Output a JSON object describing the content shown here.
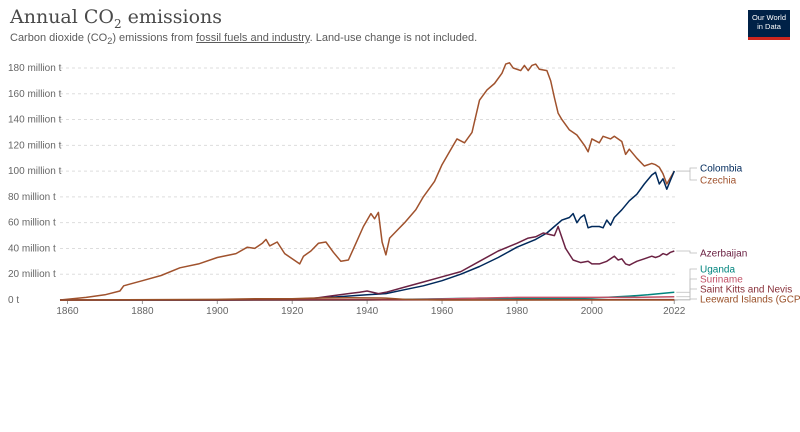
{
  "header": {
    "title_main": "Annual CO",
    "title_sub": "2",
    "title_end": " emissions",
    "subtitle_pre": "Carbon dioxide (CO",
    "subtitle_sub": "2",
    "subtitle_mid": ") emissions from ",
    "subtitle_link": "fossil fuels and industry",
    "subtitle_post": ". Land-use change is not included.",
    "logo_line1": "Our World",
    "logo_line2": "in Data"
  },
  "chart_data": {
    "type": "line",
    "xlim": [
      1858,
      2023
    ],
    "ylim": [
      0,
      180
    ],
    "x_ticks": [
      1860,
      1880,
      1900,
      1920,
      1940,
      1960,
      1980,
      2000,
      2022
    ],
    "x_tick_labels": [
      "1860",
      "1880",
      "1900",
      "1920",
      "1940",
      "1960",
      "1980",
      "2000",
      "2022"
    ],
    "y_ticks": [
      0,
      20,
      40,
      60,
      80,
      100,
      120,
      140,
      160,
      180
    ],
    "y_tick_labels": [
      "0 t",
      "20 million t",
      "40 million t",
      "60 million t",
      "80 million t",
      "100 million t",
      "120 million t",
      "140 million t",
      "160 million t",
      "180 million t"
    ],
    "grid": "horizontal dotted",
    "legend": "right, labels at line ends",
    "series": [
      {
        "name": "Czechia",
        "color": "#a0522d",
        "points": [
          [
            1858,
            0
          ],
          [
            1865,
            2
          ],
          [
            1870,
            4
          ],
          [
            1874,
            7
          ],
          [
            1875,
            11
          ],
          [
            1880,
            15
          ],
          [
            1885,
            19
          ],
          [
            1890,
            25
          ],
          [
            1895,
            28
          ],
          [
            1900,
            33
          ],
          [
            1905,
            36
          ],
          [
            1908,
            41
          ],
          [
            1910,
            40
          ],
          [
            1912,
            44
          ],
          [
            1913,
            47
          ],
          [
            1914,
            42
          ],
          [
            1916,
            45
          ],
          [
            1918,
            36
          ],
          [
            1920,
            32
          ],
          [
            1922,
            28
          ],
          [
            1923,
            34
          ],
          [
            1925,
            38
          ],
          [
            1927,
            44
          ],
          [
            1929,
            45
          ],
          [
            1931,
            37
          ],
          [
            1933,
            30
          ],
          [
            1935,
            31
          ],
          [
            1937,
            44
          ],
          [
            1939,
            57
          ],
          [
            1941,
            67
          ],
          [
            1942,
            63
          ],
          [
            1943,
            68
          ],
          [
            1944,
            45
          ],
          [
            1945,
            35
          ],
          [
            1946,
            48
          ],
          [
            1948,
            54
          ],
          [
            1950,
            60
          ],
          [
            1953,
            70
          ],
          [
            1955,
            80
          ],
          [
            1958,
            92
          ],
          [
            1960,
            105
          ],
          [
            1962,
            115
          ],
          [
            1964,
            125
          ],
          [
            1966,
            122
          ],
          [
            1968,
            130
          ],
          [
            1970,
            155
          ],
          [
            1972,
            163
          ],
          [
            1974,
            168
          ],
          [
            1976,
            176
          ],
          [
            1977,
            183
          ],
          [
            1978,
            184
          ],
          [
            1979,
            180
          ],
          [
            1981,
            178
          ],
          [
            1982,
            182
          ],
          [
            1983,
            178
          ],
          [
            1984,
            182
          ],
          [
            1985,
            183
          ],
          [
            1986,
            179
          ],
          [
            1988,
            178
          ],
          [
            1989,
            170
          ],
          [
            1990,
            157
          ],
          [
            1991,
            145
          ],
          [
            1992,
            140
          ],
          [
            1994,
            132
          ],
          [
            1996,
            128
          ],
          [
            1998,
            120
          ],
          [
            1999,
            115
          ],
          [
            2000,
            125
          ],
          [
            2002,
            122
          ],
          [
            2003,
            127
          ],
          [
            2005,
            125
          ],
          [
            2006,
            127
          ],
          [
            2008,
            123
          ],
          [
            2009,
            113
          ],
          [
            2010,
            117
          ],
          [
            2012,
            110
          ],
          [
            2014,
            104
          ],
          [
            2016,
            106
          ],
          [
            2017,
            105
          ],
          [
            2018,
            103
          ],
          [
            2019,
            98
          ],
          [
            2020,
            90
          ],
          [
            2021,
            95
          ],
          [
            2022,
            100
          ]
        ]
      },
      {
        "name": "Colombia",
        "color": "#00295b",
        "points": [
          [
            1858,
            0
          ],
          [
            1900,
            0
          ],
          [
            1920,
            0.5
          ],
          [
            1930,
            2
          ],
          [
            1940,
            4
          ],
          [
            1945,
            5
          ],
          [
            1950,
            8
          ],
          [
            1955,
            11
          ],
          [
            1960,
            15
          ],
          [
            1965,
            20
          ],
          [
            1970,
            26
          ],
          [
            1975,
            33
          ],
          [
            1980,
            41
          ],
          [
            1985,
            47
          ],
          [
            1988,
            52
          ],
          [
            1990,
            57
          ],
          [
            1992,
            62
          ],
          [
            1994,
            64
          ],
          [
            1995,
            67
          ],
          [
            1996,
            60
          ],
          [
            1997,
            64
          ],
          [
            1998,
            66
          ],
          [
            1999,
            56
          ],
          [
            2000,
            57
          ],
          [
            2002,
            57
          ],
          [
            2003,
            56
          ],
          [
            2004,
            62
          ],
          [
            2005,
            58
          ],
          [
            2006,
            64
          ],
          [
            2008,
            70
          ],
          [
            2010,
            77
          ],
          [
            2012,
            82
          ],
          [
            2014,
            90
          ],
          [
            2016,
            97
          ],
          [
            2017,
            99
          ],
          [
            2018,
            90
          ],
          [
            2019,
            94
          ],
          [
            2020,
            86
          ],
          [
            2021,
            93
          ],
          [
            2022,
            100
          ]
        ]
      },
      {
        "name": "Azerbaijan",
        "color": "#6b2243",
        "points": [
          [
            1858,
            0
          ],
          [
            1900,
            0
          ],
          [
            1920,
            0.5
          ],
          [
            1925,
            1
          ],
          [
            1930,
            3
          ],
          [
            1935,
            5
          ],
          [
            1938,
            6
          ],
          [
            1940,
            7
          ],
          [
            1943,
            5
          ],
          [
            1945,
            6
          ],
          [
            1950,
            10
          ],
          [
            1955,
            14
          ],
          [
            1960,
            18
          ],
          [
            1965,
            22
          ],
          [
            1970,
            30
          ],
          [
            1975,
            38
          ],
          [
            1980,
            44
          ],
          [
            1983,
            48
          ],
          [
            1985,
            49
          ],
          [
            1987,
            52
          ],
          [
            1990,
            50
          ],
          [
            1991,
            57
          ],
          [
            1993,
            40
          ],
          [
            1995,
            31
          ],
          [
            1997,
            29
          ],
          [
            1999,
            30
          ],
          [
            2000,
            28
          ],
          [
            2002,
            28
          ],
          [
            2004,
            30
          ],
          [
            2006,
            34
          ],
          [
            2007,
            31
          ],
          [
            2008,
            32
          ],
          [
            2009,
            28
          ],
          [
            2010,
            27
          ],
          [
            2012,
            30
          ],
          [
            2014,
            32
          ],
          [
            2016,
            34
          ],
          [
            2017,
            33
          ],
          [
            2018,
            34
          ],
          [
            2019,
            36
          ],
          [
            2020,
            35
          ],
          [
            2021,
            37
          ],
          [
            2022,
            38
          ]
        ]
      },
      {
        "name": "Uganda",
        "color": "#00847e",
        "points": [
          [
            1858,
            0
          ],
          [
            1940,
            0
          ],
          [
            1950,
            0.5
          ],
          [
            1960,
            1
          ],
          [
            1970,
            1.5
          ],
          [
            1980,
            1
          ],
          [
            1990,
            1
          ],
          [
            2000,
            1.5
          ],
          [
            2010,
            3
          ],
          [
            2015,
            4
          ],
          [
            2022,
            6
          ]
        ]
      },
      {
        "name": "Suriname",
        "color": "#c15065",
        "points": [
          [
            1858,
            0
          ],
          [
            1950,
            0.3
          ],
          [
            1960,
            0.8
          ],
          [
            1970,
            1.5
          ],
          [
            1980,
            2
          ],
          [
            1990,
            2
          ],
          [
            2000,
            2
          ],
          [
            2010,
            2
          ],
          [
            2022,
            2.5
          ]
        ]
      },
      {
        "name": "Saint Kitts and Nevis",
        "color": "#883039",
        "points": [
          [
            1858,
            0
          ],
          [
            1970,
            0.1
          ],
          [
            2000,
            0.2
          ],
          [
            2022,
            0.3
          ]
        ]
      },
      {
        "name": "Leeward Islands (GCP)",
        "color": "#9a5129",
        "points": [
          [
            1858,
            0
          ],
          [
            1900,
            0.5
          ],
          [
            1910,
            1
          ],
          [
            1920,
            1
          ],
          [
            1925,
            1.5
          ],
          [
            1935,
            1.8
          ],
          [
            1945,
            1.5
          ],
          [
            1950,
            0.5
          ],
          [
            1960,
            0
          ],
          [
            2022,
            0
          ]
        ]
      }
    ]
  }
}
